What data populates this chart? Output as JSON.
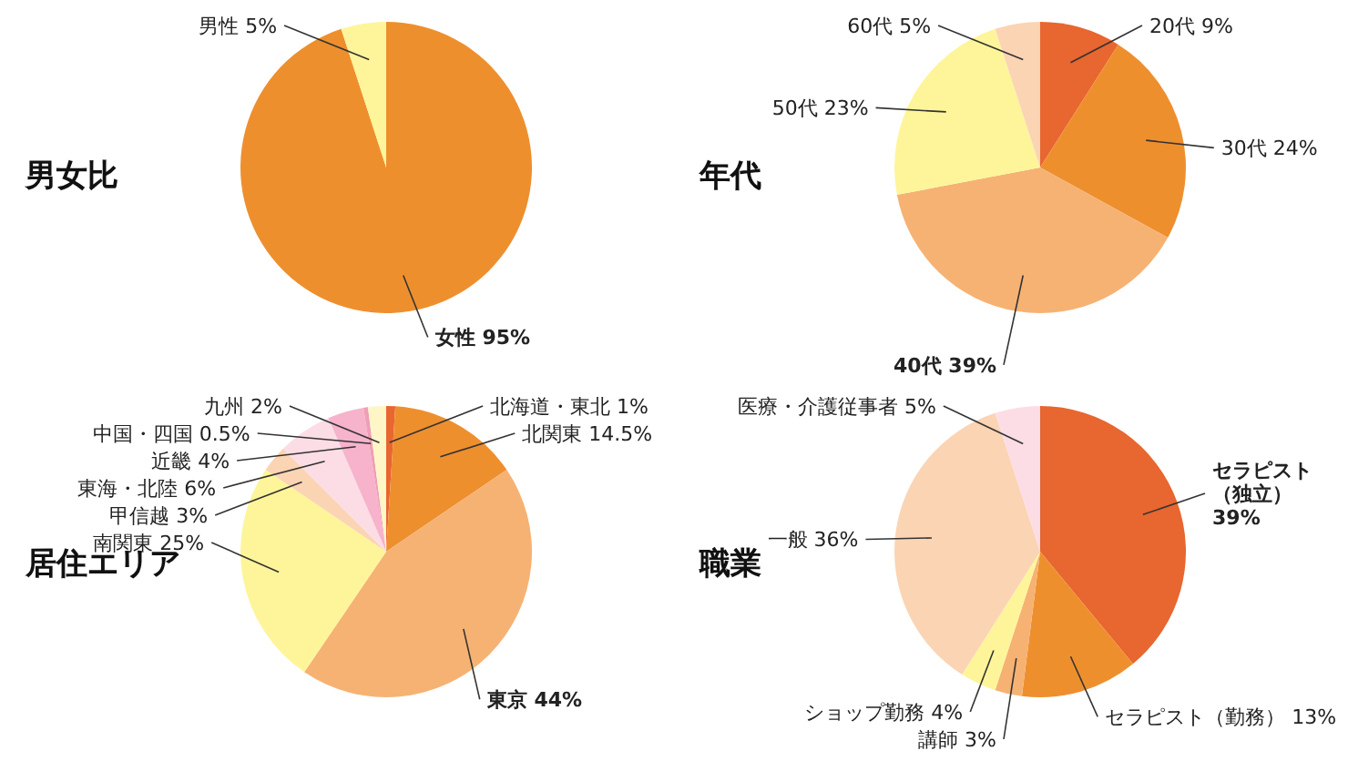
{
  "chart_data": [
    {
      "type": "pie",
      "title": "男女比",
      "categories": [
        "女性",
        "男性"
      ],
      "values": [
        95,
        5
      ],
      "value_labels": [
        "95%",
        "5%"
      ],
      "colors": [
        "#ee8f2e",
        "#fef59a"
      ],
      "legend": false
    },
    {
      "type": "pie",
      "title": "年代",
      "categories": [
        "20代",
        "30代",
        "40代",
        "50代",
        "60代"
      ],
      "values": [
        9,
        24,
        39,
        23,
        5
      ],
      "value_labels": [
        "9%",
        "24%",
        "39%",
        "23%",
        "5%"
      ],
      "colors": [
        "#e8662f",
        "#ee8f2e",
        "#f6b273",
        "#fef59a",
        "#fbd4b4"
      ],
      "legend": false
    },
    {
      "type": "pie",
      "title": "居住エリア",
      "categories": [
        "北海道・東北",
        "北関東",
        "東京",
        "南関東",
        "甲信越",
        "東海・北陸",
        "近畿",
        "中国・四国",
        "九州"
      ],
      "values": [
        1,
        14.5,
        44,
        25,
        3,
        6,
        4,
        0.5,
        2
      ],
      "value_labels": [
        "1%",
        "14.5%",
        "44%",
        "25%",
        "3%",
        "6%",
        "4%",
        "0.5%",
        "2%"
      ],
      "colors": [
        "#e8662f",
        "#ee8f2e",
        "#f6b273",
        "#fef59a",
        "#fbd4b4",
        "#fcdde6",
        "#f6b3cb",
        "#ef9fb5",
        "#fff6c8"
      ],
      "legend": false
    },
    {
      "type": "pie",
      "title": "職業",
      "categories": [
        "セラピスト（独立）",
        "セラピスト（勤務）",
        "講師",
        "ショップ勤務",
        "一般",
        "医療・介護従事者"
      ],
      "values": [
        39,
        13,
        3,
        4,
        36,
        5
      ],
      "value_labels": [
        "39%",
        "13%",
        "3%",
        "4%",
        "36%",
        "5%"
      ],
      "colors": [
        "#e8662f",
        "#ee8f2e",
        "#f6b273",
        "#fef59a",
        "#fbd4b4",
        "#fcdde6"
      ],
      "legend": false
    }
  ]
}
